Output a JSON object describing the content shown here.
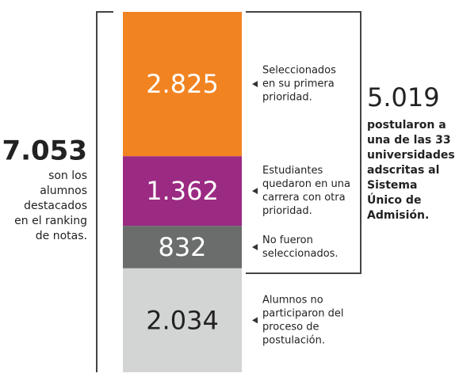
{
  "chart_data": {
    "type": "stacked-bar",
    "categories": [
      [
        "Seleccionados",
        "en su primera",
        "prioridad."
      ],
      [
        "Estudiantes",
        "quedaron en una",
        "carrera con otra",
        "prioridad."
      ],
      [
        "No fueron",
        "seleccionados."
      ],
      [
        "Alumnos no",
        "participaron del",
        "proceso de",
        "postulación."
      ]
    ],
    "values": [
      2825,
      1362,
      832,
      2034
    ],
    "value_labels": [
      "2.825",
      "1.362",
      "832",
      "2.034"
    ],
    "colors": [
      "#f28321",
      "#9b2a83",
      "#6b6d6d",
      "#d3d5d4"
    ],
    "annotations": [
      {
        "label": "7.053",
        "text": [
          "son los",
          "alumnos",
          "destacados",
          "en el ranking",
          "de notas."
        ]
      },
      {
        "label": "5.019",
        "text": [
          "postularon a",
          "una de las 33",
          "universidades",
          "adscritas al",
          "Sistema",
          "Único de",
          "Admisión."
        ]
      }
    ]
  }
}
